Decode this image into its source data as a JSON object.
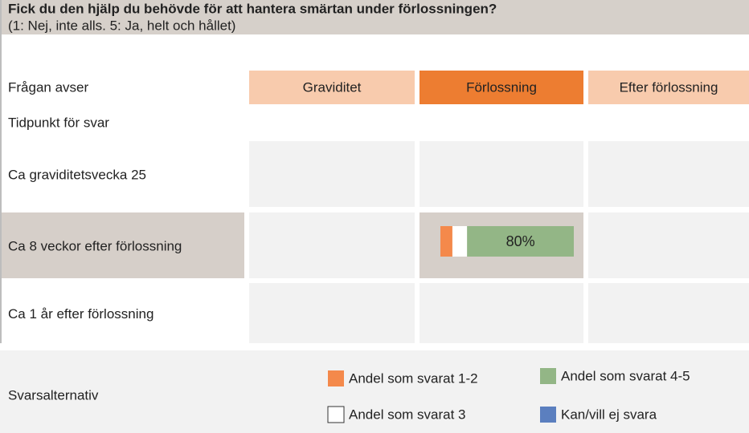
{
  "chart_data": {
    "type": "stacked-bar",
    "title": "Fick du den hjälp du behövde för att hantera smärtan under förlossningen?",
    "subtitle": "(1: Nej, inte alls. 5: Ja, helt och hållet)",
    "header_label": "Frågan avser",
    "columns": [
      "Graviditet",
      "Förlossning",
      "Efter förlossning"
    ],
    "row_header": "Tidpunkt för svar",
    "rows": [
      "Ca graviditetsvecka 25",
      "Ca 8 veckor efter förlossning",
      "Ca 1 år efter förlossning"
    ],
    "legend_title": "Svarsalternativ",
    "xlim": [
      0,
      100
    ],
    "series": [
      {
        "name": "Andel som svarat 1-2",
        "color": "#f4894b",
        "values": [
          9
        ]
      },
      {
        "name": "Andel som svarat 3",
        "color": "#ffffff",
        "values": [
          11
        ]
      },
      {
        "name": "Andel som svarat 4-5",
        "color": "#93b686",
        "values": [
          80
        ],
        "value_labels": [
          "80%"
        ]
      },
      {
        "name": "Kan/vill ej svara",
        "color": "#5b7fbf",
        "values": [
          0
        ]
      }
    ]
  }
}
